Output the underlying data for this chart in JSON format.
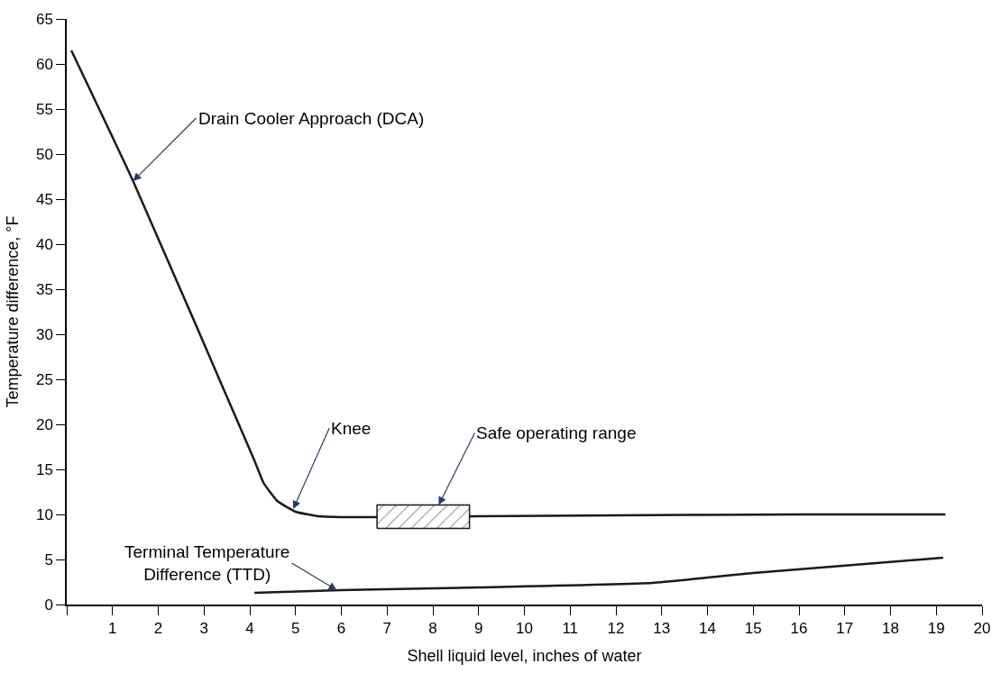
{
  "chart_data": {
    "type": "line",
    "xlabel": "Shell liquid level, inches of water",
    "ylabel": "Temperature difference, °F",
    "xlim": [
      0,
      20
    ],
    "xticks": [
      {
        "value": 0,
        "label": null
      },
      1,
      2,
      3,
      4,
      5,
      6,
      7,
      8,
      9,
      10,
      11,
      12,
      13,
      14,
      15,
      16,
      17,
      18,
      19,
      20
    ],
    "ylim": [
      0,
      65
    ],
    "yticks": [
      0,
      5,
      10,
      15,
      20,
      25,
      30,
      35,
      40,
      45,
      50,
      55,
      60,
      65
    ],
    "marker": "none",
    "line_style": "solid",
    "series": [
      {
        "color": "#1a1a1a",
        "x": [
          0.1,
          1.45,
          4.1,
          4.3,
          4.6,
          5.0,
          5.5,
          6.0,
          6.6,
          9.0,
          12.0,
          16.0,
          19.2
        ],
        "values": [
          61.5,
          47,
          16,
          13.5,
          11.5,
          10.3,
          9.8,
          9.7,
          9.7,
          9.8,
          9.9,
          10.0,
          10.0
        ]
      },
      {
        "color": "#1a1a1a",
        "x": [
          4.1,
          6,
          9,
          12.8,
          15,
          19.15
        ],
        "values": [
          1.3,
          1.6,
          1.9,
          2.4,
          3.5,
          5.2
        ]
      }
    ],
    "bands": [
      {
        "axis": "x",
        "from": 6.78,
        "to": 8.8,
        "label": "Safe operating range",
        "color": "#1a1a1a"
      }
    ],
    "annotations": [
      {
        "text": "Drain Cooler Approach (DCA)",
        "x": 1.45,
        "y": 47
      },
      {
        "text": "Knee",
        "x": 4.95,
        "y": 10.6
      },
      {
        "text": "Terminal Temperature\nDifference (TTD)",
        "x": 5.9,
        "y": 1.6
      }
    ]
  }
}
